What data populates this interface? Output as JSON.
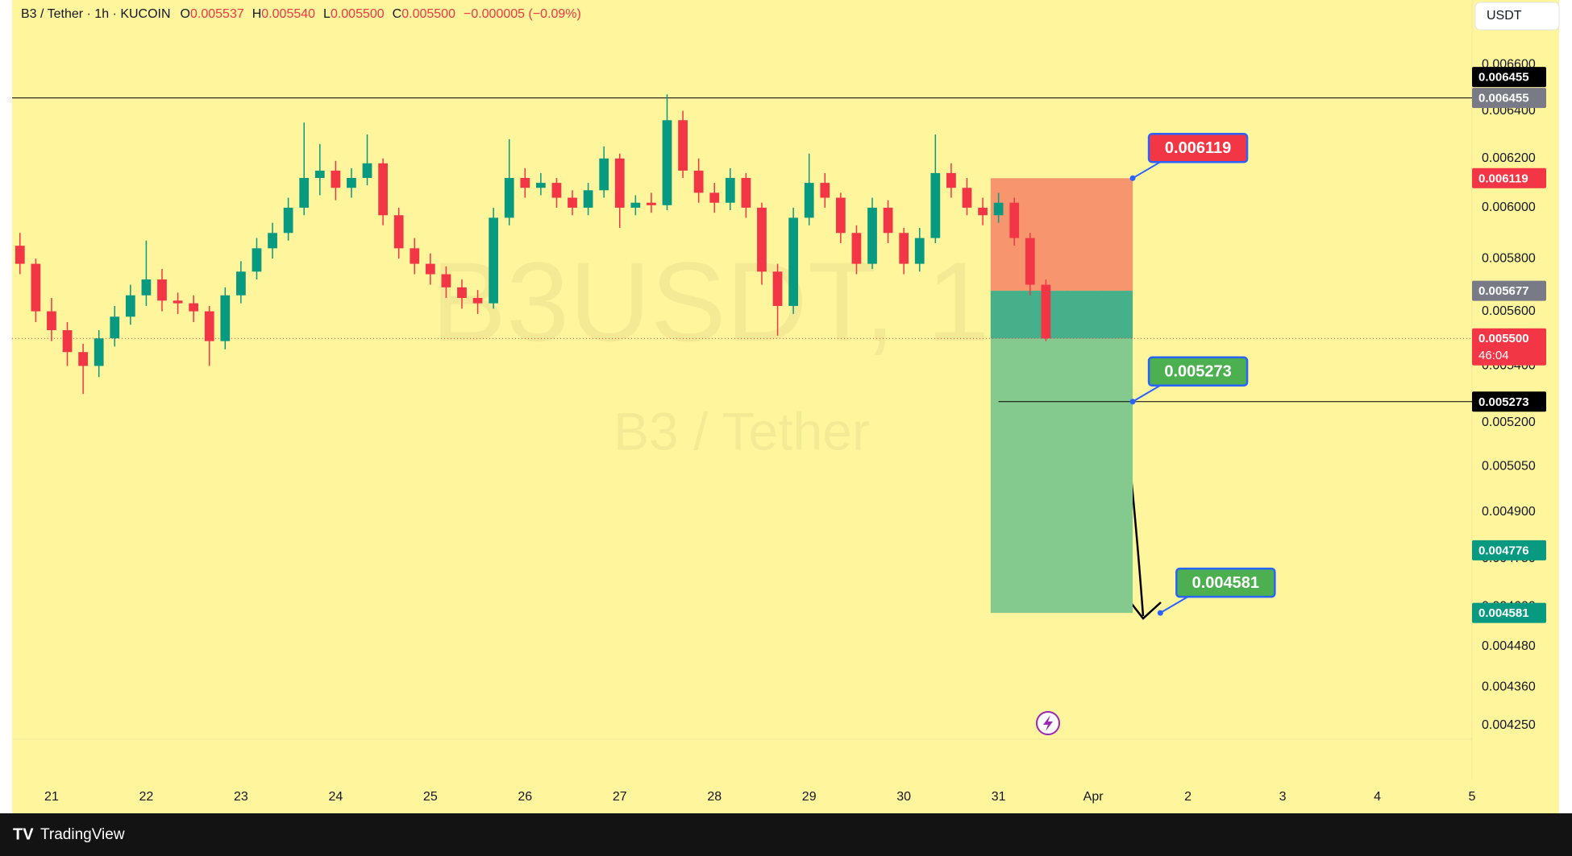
{
  "header": {
    "symbol": "B3 / Tether · 1h · KUCOIN",
    "ohlc": [
      {
        "key": "O",
        "value": "0.005537"
      },
      {
        "key": "H",
        "value": "0.005540"
      },
      {
        "key": "L",
        "value": "0.005500"
      },
      {
        "key": "C",
        "value": "0.005500"
      }
    ],
    "change": "−0.000005 (−0.09%)"
  },
  "currency_button": "USDT",
  "footer": "TradingView",
  "chart_data": {
    "type": "candlestick",
    "watermark": "B3USDT, 1h",
    "watermark_subtitle": "B3 / Tether",
    "log_scale": true,
    "grid": false,
    "up_color": "#089981",
    "down_color": "#f23645",
    "background": "#fff59d",
    "xlim": [
      -10,
      360
    ],
    "xticks": [
      {
        "value": 0,
        "label": "21"
      },
      {
        "value": 24,
        "label": "22"
      },
      {
        "value": 48,
        "label": "23"
      },
      {
        "value": 72,
        "label": "24"
      },
      {
        "value": 96,
        "label": "25"
      },
      {
        "value": 120,
        "label": "26"
      },
      {
        "value": 144,
        "label": "27"
      },
      {
        "value": 168,
        "label": "28"
      },
      {
        "value": 192,
        "label": "29"
      },
      {
        "value": 216,
        "label": "30"
      },
      {
        "value": 240,
        "label": "31"
      },
      {
        "value": 264,
        "label": "Apr"
      },
      {
        "value": 288,
        "label": "2"
      },
      {
        "value": 312,
        "label": "3"
      },
      {
        "value": 336,
        "label": "4"
      },
      {
        "value": 360,
        "label": "5"
      }
    ],
    "ylim": [
      0.0041,
      0.00689
    ],
    "yticks": [
      {
        "value": 0.0066,
        "label": "0.006600"
      },
      {
        "value": 0.0064,
        "label": "0.006400"
      },
      {
        "value": 0.0062,
        "label": "0.006200"
      },
      {
        "value": 0.006,
        "label": "0.006000"
      },
      {
        "value": 0.0058,
        "label": "0.005800"
      },
      {
        "value": 0.0056,
        "label": "0.005600"
      },
      {
        "value": 0.0054,
        "label": "0.005400"
      },
      {
        "value": 0.0052,
        "label": "0.005200"
      },
      {
        "value": 0.00505,
        "label": "0.005050"
      },
      {
        "value": 0.0049,
        "label": "0.004900"
      },
      {
        "value": 0.00475,
        "label": "0.004750"
      },
      {
        "value": 0.0046,
        "label": "0.004600"
      },
      {
        "value": 0.00448,
        "label": "0.004480"
      },
      {
        "value": 0.00436,
        "label": "0.004360"
      },
      {
        "value": 0.00425,
        "label": "0.004250"
      }
    ],
    "x": [
      -8,
      -4,
      0,
      4,
      8,
      12,
      16,
      20,
      24,
      28,
      32,
      36,
      40,
      44,
      48,
      52,
      56,
      60,
      64,
      68,
      72,
      76,
      80,
      84,
      88,
      92,
      96,
      100,
      104,
      108,
      112,
      116,
      120,
      124,
      128,
      132,
      136,
      140,
      144,
      148,
      152,
      156,
      160,
      164,
      168,
      172,
      176,
      180,
      184,
      188,
      192,
      196,
      200,
      204,
      208,
      212,
      216,
      220,
      224,
      228,
      232,
      236,
      240,
      244,
      248,
      252
    ],
    "open": [
      0.00585,
      0.00578,
      0.0056,
      0.00553,
      0.00545,
      0.0054,
      0.0055,
      0.00558,
      0.00566,
      0.00572,
      0.00564,
      0.00563,
      0.0056,
      0.00549,
      0.00566,
      0.00575,
      0.00584,
      0.0059,
      0.006,
      0.00612,
      0.00615,
      0.00608,
      0.00612,
      0.00618,
      0.00597,
      0.00584,
      0.00578,
      0.00574,
      0.00569,
      0.00565,
      0.00563,
      0.00596,
      0.00612,
      0.00608,
      0.0061,
      0.00604,
      0.006,
      0.00607,
      0.0062,
      0.006,
      0.00602,
      0.00601,
      0.00636,
      0.00615,
      0.00606,
      0.00602,
      0.00612,
      0.006,
      0.00575,
      0.00562,
      0.00596,
      0.0061,
      0.00604,
      0.0059,
      0.00578,
      0.006,
      0.0059,
      0.00578,
      0.00588,
      0.00614,
      0.00608,
      0.006,
      0.00597,
      0.00602,
      0.00588,
      0.0057
    ],
    "high": [
      0.0059,
      0.0058,
      0.00565,
      0.00556,
      0.00548,
      0.00553,
      0.00562,
      0.0057,
      0.00587,
      0.00576,
      0.00567,
      0.00566,
      0.00562,
      0.00569,
      0.00579,
      0.00588,
      0.00594,
      0.00604,
      0.00635,
      0.00626,
      0.00619,
      0.00616,
      0.0063,
      0.0062,
      0.006,
      0.00588,
      0.00582,
      0.00577,
      0.00572,
      0.00568,
      0.006,
      0.00628,
      0.00616,
      0.00614,
      0.00612,
      0.00607,
      0.0061,
      0.00625,
      0.00622,
      0.00605,
      0.00606,
      0.00647,
      0.0064,
      0.0062,
      0.0061,
      0.00616,
      0.00614,
      0.00602,
      0.00578,
      0.006,
      0.00622,
      0.00614,
      0.00606,
      0.00593,
      0.00604,
      0.00603,
      0.00592,
      0.00592,
      0.0063,
      0.00618,
      0.00612,
      0.00604,
      0.00606,
      0.00604,
      0.0059,
      0.00572
    ],
    "low": [
      0.00574,
      0.00556,
      0.00549,
      0.0054,
      0.0053,
      0.00536,
      0.00547,
      0.00555,
      0.00562,
      0.0056,
      0.00559,
      0.00556,
      0.0054,
      0.00546,
      0.00563,
      0.00572,
      0.0058,
      0.00587,
      0.00597,
      0.00605,
      0.00603,
      0.00604,
      0.00609,
      0.00593,
      0.0058,
      0.00574,
      0.0057,
      0.00565,
      0.00561,
      0.00559,
      0.00561,
      0.00593,
      0.00604,
      0.00605,
      0.006,
      0.00597,
      0.00597,
      0.00604,
      0.00592,
      0.00597,
      0.00598,
      0.00599,
      0.00612,
      0.00602,
      0.00598,
      0.00599,
      0.00596,
      0.0057,
      0.00551,
      0.00559,
      0.00593,
      0.006,
      0.00586,
      0.00574,
      0.00576,
      0.00586,
      0.00574,
      0.00575,
      0.00586,
      0.00604,
      0.00597,
      0.00593,
      0.00594,
      0.00585,
      0.00566,
      0.00549
    ],
    "close": [
      0.00578,
      0.0056,
      0.00553,
      0.00545,
      0.0054,
      0.0055,
      0.00558,
      0.00566,
      0.00572,
      0.00564,
      0.00563,
      0.0056,
      0.00549,
      0.00566,
      0.00575,
      0.00584,
      0.0059,
      0.006,
      0.00612,
      0.00615,
      0.00608,
      0.00612,
      0.00618,
      0.00597,
      0.00584,
      0.00578,
      0.00574,
      0.00569,
      0.00565,
      0.00563,
      0.00596,
      0.00612,
      0.00608,
      0.0061,
      0.00604,
      0.006,
      0.00607,
      0.0062,
      0.006,
      0.00602,
      0.00601,
      0.00636,
      0.00615,
      0.00606,
      0.00602,
      0.00612,
      0.006,
      0.00575,
      0.00562,
      0.00596,
      0.0061,
      0.00604,
      0.0059,
      0.00578,
      0.006,
      0.0059,
      0.00578,
      0.00588,
      0.00614,
      0.00608,
      0.006,
      0.00597,
      0.00602,
      0.00588,
      0.0057,
      0.0055
    ],
    "lines": [
      {
        "value": 0.006455,
        "x_start": -10
      },
      {
        "value": 0.005273,
        "x_start": 240
      }
    ],
    "last_price": 0.0055,
    "position": {
      "stop": 0.006119,
      "entry": 0.005677,
      "target": 0.004581,
      "x_start": 238,
      "x_end": 274,
      "loss_color": "#f7956e",
      "profit_color": "#84c98e",
      "active_color": "#45b08a"
    },
    "callouts": [
      {
        "value": 0.006119,
        "x": 274,
        "color": "#f23645"
      },
      {
        "value": 0.005273,
        "x": 274,
        "color": "#4caf50"
      },
      {
        "value": 0.004581,
        "x": 281,
        "color": "#4caf50"
      }
    ],
    "price_labels": [
      {
        "value": 0.006455,
        "color": "#000000"
      },
      {
        "value": 0.006455,
        "color": "#787b86"
      },
      {
        "value": 0.006119,
        "color": "#f23645"
      },
      {
        "value": 0.005677,
        "color": "#787b86"
      },
      {
        "value": 0.0055,
        "label": "0.005500",
        "color": "#f23645",
        "countdown": "46:04"
      },
      {
        "value": 0.005273,
        "color": "#000000"
      },
      {
        "value": 0.004776,
        "color": "#089981"
      },
      {
        "value": 0.004581,
        "color": "#089981"
      }
    ]
  }
}
